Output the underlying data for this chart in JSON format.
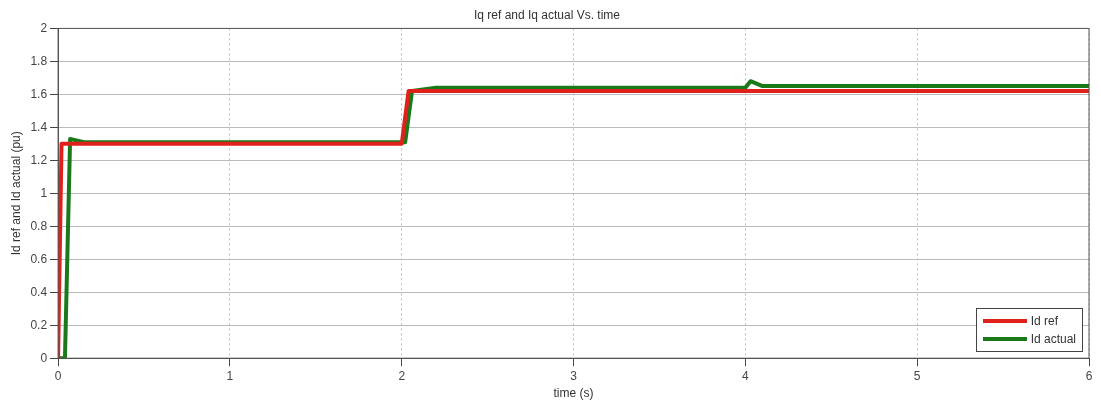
{
  "chart_data": {
    "type": "line",
    "title": "Iq ref and Iq actual Vs. time",
    "xlabel": "time (s)",
    "ylabel": "Id ref and Id actual (pu)",
    "series": [
      {
        "name": "Id ref",
        "color": "#e0201b",
        "x": [
          0,
          0.02,
          0.5,
          1,
          1.5,
          2.0,
          2.04,
          2.5,
          3,
          3.5,
          4,
          4.5,
          5,
          5.5,
          6
        ],
        "values": [
          0,
          1.3,
          1.3,
          1.3,
          1.3,
          1.3,
          1.62,
          1.62,
          1.62,
          1.62,
          1.62,
          1.62,
          1.62,
          1.62,
          1.62
        ]
      },
      {
        "name": "Id actual",
        "color": "#1a7a1a",
        "x": [
          0,
          0.04,
          0.07,
          0.15,
          1,
          2.02,
          2.06,
          2.2,
          3,
          4.0,
          4.03,
          4.1,
          5,
          6
        ],
        "values": [
          0,
          0,
          1.33,
          1.31,
          1.31,
          1.31,
          1.62,
          1.64,
          1.64,
          1.64,
          1.68,
          1.65,
          1.65,
          1.65
        ]
      }
    ],
    "xlim": [
      0,
      6
    ],
    "xticks": [
      0,
      1,
      2,
      3,
      4,
      5,
      6
    ],
    "ylim": [
      0,
      2
    ],
    "yticks": [
      0,
      0.2,
      0.4,
      0.6,
      0.8,
      1,
      1.2,
      1.4,
      1.6,
      1.8,
      2
    ],
    "grid": true,
    "legend": "bottom right",
    "marker": "none",
    "line_style": "solid"
  }
}
